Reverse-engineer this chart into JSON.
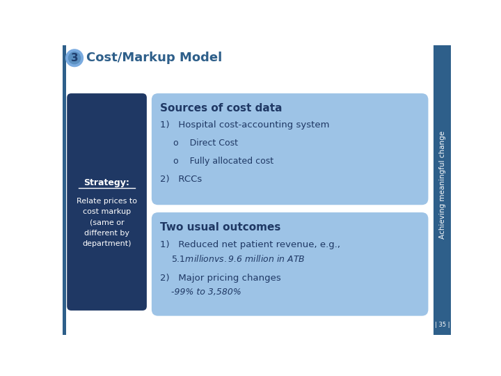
{
  "bg_color": "#ffffff",
  "title": "Cost/Markup Model",
  "title_color": "#2e5f8a",
  "title_fontsize": 13,
  "circle_bg_color": "#7aabe0",
  "circle_ring_color": "#5a8fc0",
  "circle_number": "3",
  "circle_number_color": "#1f3e6e",
  "sidebar_bg": "#1f3864",
  "sidebar_title": "Strategy:",
  "sidebar_title_color": "#ffffff",
  "sidebar_text": "Relate prices to\ncost markup\n(same or\ndifferent by\ndepartment)",
  "sidebar_text_color": "#ffffff",
  "box1_bg": "#9dc3e6",
  "box1_title": "Sources of cost data",
  "box1_title_color": "#1f3864",
  "box1_text_color": "#1f3864",
  "box2_bg": "#9dc3e6",
  "box2_title": "Two usual outcomes",
  "box2_title_color": "#1f3864",
  "box2_text_color": "#1f3864",
  "right_bar_color": "#2e5f8a",
  "right_bar_text": "Achieving meaningful change",
  "page_number": "| 35 |",
  "page_num_color": "#1f3864",
  "left_accent_color": "#2e5f8a"
}
